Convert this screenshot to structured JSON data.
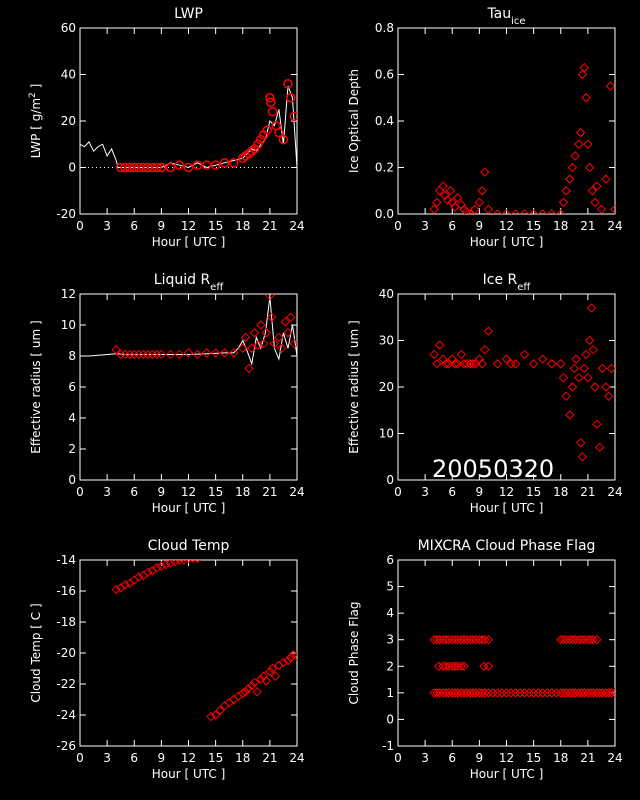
{
  "date_stamp": "20050320",
  "marker_color": "#ff0000",
  "line_color": "#ffffff",
  "chart_data": [
    {
      "id": "lwp",
      "type": "line",
      "title": "LWP",
      "title_sub": "",
      "ylabel": "LWP [ g/m",
      "ylabel_sup": "2",
      "ylabel_end": " ]",
      "xlabel": "Hour [ UTC ]",
      "xlim": [
        0,
        24
      ],
      "ylim": [
        -20,
        60
      ],
      "xticks": [
        0,
        3,
        6,
        9,
        12,
        15,
        18,
        21,
        24
      ],
      "yticks": [
        -20,
        0,
        20,
        40,
        60
      ],
      "zero_line": true,
      "series": [
        {
          "kind": "line",
          "x": [
            0,
            0.5,
            1,
            1.5,
            2,
            2.5,
            3,
            3.5,
            4,
            4.2,
            5,
            6,
            7,
            8,
            9,
            10,
            11,
            12,
            13,
            14,
            15,
            16,
            17,
            18,
            18.5,
            19,
            19.5,
            20,
            20.5,
            21,
            21.5,
            22,
            22.5,
            23,
            23.5,
            24
          ],
          "y": [
            10,
            9,
            11,
            7,
            9,
            10,
            5,
            8,
            3,
            0,
            0,
            0,
            0,
            0,
            0,
            2,
            1,
            0,
            2,
            0,
            1,
            2,
            3,
            4,
            6,
            8,
            7,
            10,
            12,
            20,
            18,
            25,
            10,
            35,
            30,
            0
          ]
        },
        {
          "kind": "marker",
          "shape": "circle",
          "x": [
            4.5,
            5,
            5.5,
            6,
            6.5,
            7,
            7.5,
            8,
            8.5,
            9,
            10,
            11,
            12,
            13,
            14,
            15,
            16,
            17,
            18,
            18.3,
            18.7,
            19,
            19.3,
            19.7,
            20,
            20.3,
            20.7,
            21,
            21.1,
            21.3,
            21.7,
            22,
            22.5,
            23,
            23.3,
            23.7
          ],
          "y": [
            0,
            0,
            0,
            0,
            0,
            0,
            0,
            0,
            0,
            0,
            0,
            1,
            0,
            1,
            1,
            1,
            2,
            2,
            4,
            5,
            6,
            7,
            8,
            10,
            12,
            14,
            16,
            30,
            28,
            24,
            18,
            15,
            12,
            36,
            30,
            22
          ]
        }
      ]
    },
    {
      "id": "tau",
      "type": "scatter",
      "title": "Tau",
      "title_sub": "ice",
      "ylabel": "Ice Optical Depth",
      "ylabel_sup": "",
      "ylabel_end": "",
      "xlabel": "Hour [ UTC ]",
      "xlim": [
        0,
        24
      ],
      "ylim": [
        0,
        0.8
      ],
      "xticks": [
        0,
        3,
        6,
        9,
        12,
        15,
        18,
        21,
        24
      ],
      "yticks": [
        0.0,
        0.2,
        0.4,
        0.6,
        0.8
      ],
      "ytick_labels": [
        "0.0",
        "0.2",
        "0.4",
        "0.6",
        "0.8"
      ],
      "series": [
        {
          "kind": "marker",
          "shape": "diamond",
          "x": [
            4,
            4.3,
            4.6,
            5,
            5.2,
            5.5,
            5.8,
            6,
            6.3,
            6.6,
            7,
            7.3,
            7.6,
            8,
            8.5,
            9,
            9.3,
            9.6,
            10,
            11,
            12,
            13,
            14,
            15,
            16,
            17,
            18,
            18.3,
            18.6,
            19,
            19.3,
            19.6,
            20,
            20.2,
            20.4,
            20.6,
            20.8,
            21,
            21.2,
            21.5,
            21.8,
            22,
            22.5,
            23,
            23.5,
            24
          ],
          "y": [
            0.02,
            0.05,
            0.1,
            0.12,
            0.08,
            0.06,
            0.1,
            0.05,
            0.03,
            0.07,
            0.04,
            0.02,
            0.01,
            0.0,
            0.02,
            0.05,
            0.1,
            0.18,
            0.02,
            0.0,
            0.0,
            0.0,
            0.0,
            0.0,
            0.0,
            0.0,
            0.0,
            0.05,
            0.1,
            0.15,
            0.2,
            0.25,
            0.3,
            0.35,
            0.6,
            0.63,
            0.5,
            0.3,
            0.2,
            0.1,
            0.05,
            0.12,
            0.02,
            0.15,
            0.55,
            0.02
          ]
        }
      ]
    },
    {
      "id": "lreff",
      "type": "line",
      "title": "Liquid R",
      "title_sub": "eff",
      "ylabel": "Effective radius [ um ]",
      "ylabel_sup": "",
      "ylabel_end": "",
      "xlabel": "Hour [ UTC ]",
      "xlim": [
        0,
        24
      ],
      "ylim": [
        0,
        12
      ],
      "xticks": [
        0,
        3,
        6,
        9,
        12,
        15,
        18,
        21,
        24
      ],
      "yticks": [
        0,
        2,
        4,
        6,
        8,
        10,
        12
      ],
      "series": [
        {
          "kind": "line",
          "x": [
            0,
            1,
            2,
            3,
            4,
            5,
            6,
            8,
            10,
            12,
            14,
            16,
            17,
            17.5,
            18,
            18.5,
            19,
            19.5,
            20,
            20.5,
            21,
            21.5,
            22,
            22.5,
            23,
            23.5,
            24
          ],
          "y": [
            8,
            8,
            8.05,
            8.1,
            8.15,
            8.1,
            8.1,
            8.1,
            8.1,
            8.1,
            8.15,
            8.2,
            8.2,
            8.5,
            9,
            8.3,
            7.5,
            9.2,
            8.5,
            9.5,
            11.8,
            8.5,
            7.8,
            9.5,
            8.5,
            10,
            8
          ]
        },
        {
          "kind": "marker",
          "shape": "diamond",
          "x": [
            4,
            4.5,
            5,
            5.5,
            6,
            6.5,
            7,
            7.5,
            8,
            8.5,
            9,
            10,
            11,
            12,
            13,
            14,
            15,
            16,
            17,
            18,
            18.3,
            18.7,
            19,
            19.3,
            19.7,
            20,
            20.3,
            20.6,
            21,
            21.2,
            21.5,
            22,
            22.3,
            22.7,
            23,
            23.3,
            23.7
          ],
          "y": [
            8.4,
            8.1,
            8.1,
            8.1,
            8.1,
            8.1,
            8.1,
            8.1,
            8.1,
            8.1,
            8.1,
            8.1,
            8.1,
            8.2,
            8.1,
            8.2,
            8.2,
            8.2,
            8.2,
            8.5,
            9.2,
            7.2,
            8.5,
            9.5,
            8.7,
            10,
            8.8,
            9.5,
            11.9,
            10.5,
            8.8,
            9.2,
            8.5,
            10.2,
            9.5,
            10.5,
            8.8
          ]
        }
      ]
    },
    {
      "id": "ireff",
      "type": "scatter",
      "title": "Ice R",
      "title_sub": "eff",
      "ylabel": "Effective radius [ um ]",
      "ylabel_sup": "",
      "ylabel_end": "",
      "xlabel": "Hour [ UTC ]",
      "xlim": [
        0,
        24
      ],
      "ylim": [
        0,
        40
      ],
      "xticks": [
        0,
        3,
        6,
        9,
        12,
        15,
        18,
        21,
        24
      ],
      "yticks": [
        0,
        10,
        20,
        30,
        40
      ],
      "series": [
        {
          "kind": "marker",
          "shape": "diamond",
          "x": [
            4,
            4.3,
            4.6,
            5,
            5.3,
            5.6,
            6,
            6.3,
            6.6,
            7,
            7.3,
            7.6,
            8,
            8.3,
            8.6,
            9,
            9.3,
            9.6,
            10,
            11,
            12,
            12.5,
            13,
            14,
            15,
            16,
            17,
            18,
            18.3,
            18.6,
            19,
            19.3,
            19.5,
            19.7,
            20,
            20.2,
            20.4,
            20.6,
            20.8,
            21,
            21.2,
            21.4,
            21.6,
            21.8,
            22,
            22.3,
            22.6,
            23,
            23.3,
            23.6
          ],
          "y": [
            27,
            25,
            29,
            26,
            25,
            25,
            26,
            25,
            25,
            27,
            25,
            25,
            25,
            25,
            25,
            26,
            25,
            28,
            32,
            25,
            26,
            25,
            25,
            27,
            25,
            26,
            25,
            25,
            22,
            18,
            14,
            20,
            24,
            26,
            22,
            8,
            5,
            24,
            27,
            22,
            30,
            37,
            28,
            20,
            12,
            7,
            24,
            20,
            18,
            24
          ]
        }
      ]
    },
    {
      "id": "ctemp",
      "type": "scatter",
      "title": "Cloud Temp",
      "title_sub": "",
      "ylabel": "Cloud Temp [ C ]",
      "ylabel_sup": "",
      "ylabel_end": "",
      "xlabel": "Hour [ UTC ]",
      "xlim": [
        0,
        24
      ],
      "ylim": [
        -26,
        -14
      ],
      "xticks": [
        0,
        3,
        6,
        9,
        12,
        15,
        18,
        21,
        24
      ],
      "yticks": [
        -26,
        -24,
        -22,
        -20,
        -18,
        -16,
        -14
      ],
      "series": [
        {
          "kind": "marker",
          "shape": "diamond",
          "x": [
            4,
            4.5,
            5,
            5.5,
            6,
            6.5,
            7,
            7.5,
            8,
            8.5,
            9,
            9.5,
            10,
            10.5,
            11,
            11.5,
            12,
            12.5,
            13,
            14.5,
            15,
            15.5,
            16,
            16.5,
            17,
            17.5,
            18,
            18.3,
            18.6,
            19,
            19.3,
            19.6,
            20,
            20.3,
            20.6,
            21,
            21.3,
            21.6,
            22,
            22.5,
            23,
            23.3,
            23.6,
            24
          ],
          "y": [
            -15.9,
            -15.8,
            -15.6,
            -15.5,
            -15.3,
            -15.1,
            -15.0,
            -14.8,
            -14.7,
            -14.5,
            -14.4,
            -14.3,
            -14.2,
            -14.1,
            -14.0,
            -14.0,
            -13.9,
            -13.9,
            -13.9,
            -24.1,
            -24.0,
            -23.7,
            -23.4,
            -23.2,
            -23.0,
            -22.8,
            -22.6,
            -22.5,
            -22.3,
            -22.1,
            -21.9,
            -22.5,
            -21.7,
            -21.5,
            -21.8,
            -21.2,
            -21.0,
            -21.5,
            -20.8,
            -20.6,
            -20.5,
            -20.3,
            -20.1,
            -20.2
          ]
        }
      ]
    },
    {
      "id": "phase",
      "type": "scatter",
      "title": "MIXCRA Cloud Phase Flag",
      "title_sub": "",
      "ylabel": "Cloud Phase Flag",
      "ylabel_sup": "",
      "ylabel_end": "",
      "xlabel": "Hour [ UTC ]",
      "xlim": [
        0,
        24
      ],
      "ylim": [
        -1,
        6
      ],
      "xticks": [
        0,
        3,
        6,
        9,
        12,
        15,
        18,
        21,
        24
      ],
      "yticks": [
        -1,
        0,
        1,
        2,
        3,
        4,
        5,
        6
      ],
      "series": [
        {
          "kind": "marker",
          "shape": "diamond",
          "x": [
            4,
            4.3,
            4.6,
            5,
            5.3,
            5.6,
            6,
            6.3,
            6.6,
            7,
            7.3,
            7.6,
            8,
            8.3,
            8.6,
            9,
            9.3,
            9.6,
            10,
            10.5,
            11,
            11.5,
            12,
            12.5,
            13,
            13.5,
            14,
            14.5,
            15,
            15.5,
            16,
            16.5,
            17,
            17.5,
            18,
            18.3,
            18.6,
            19,
            19.3,
            19.6,
            20,
            20.3,
            20.6,
            21,
            21.3,
            21.6,
            22,
            22.3,
            22.6,
            23,
            23.3,
            23.6,
            24,
            4,
            4.3,
            4.6,
            5,
            5.3,
            5.6,
            6,
            6.3,
            6.6,
            7,
            7.3,
            7.6,
            8,
            8.3,
            8.6,
            9,
            9.3,
            9.6,
            10,
            18,
            18.3,
            18.6,
            19,
            19.3,
            19.6,
            20,
            20.3,
            20.6,
            21,
            21.3,
            21.6,
            22,
            4.5,
            5,
            5.3,
            5.6,
            6,
            6.3,
            6.6,
            7,
            7.3,
            9.5,
            10
          ],
          "y": [
            1,
            1,
            1,
            1,
            1,
            1,
            1,
            1,
            1,
            1,
            1,
            1,
            1,
            1,
            1,
            1,
            1,
            1,
            1,
            1,
            1,
            1,
            1,
            1,
            1,
            1,
            1,
            1,
            1,
            1,
            1,
            1,
            1,
            1,
            1,
            1,
            1,
            1,
            1,
            1,
            1,
            1,
            1,
            1,
            1,
            1,
            1,
            1,
            1,
            1,
            1,
            1,
            1,
            3,
            3,
            3,
            3,
            3,
            3,
            3,
            3,
            3,
            3,
            3,
            3,
            3,
            3,
            3,
            3,
            3,
            3,
            3,
            3,
            3,
            3,
            3,
            3,
            3,
            3,
            3,
            3,
            3,
            3,
            3,
            3,
            2,
            2,
            2,
            2,
            2,
            2,
            2,
            2,
            2,
            2,
            2
          ]
        }
      ]
    }
  ]
}
